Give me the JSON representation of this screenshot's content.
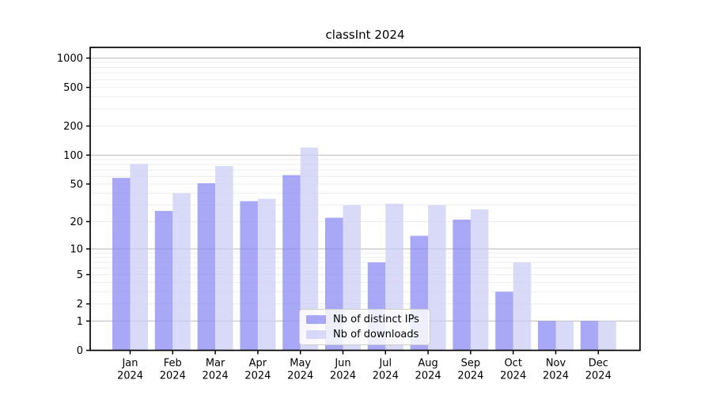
{
  "title": "classInt 2024",
  "legend": {
    "items": [
      {
        "label": "Nb of distinct IPs",
        "color": "#8b8bf3"
      },
      {
        "label": "Nb of downloads",
        "color": "#ccccf6"
      }
    ]
  },
  "colors": {
    "ips_bar": "#8b8bf3",
    "downloads_bar": "#ccccf6",
    "bar_opacity": 0.75,
    "grid_major": "#bdbdbd",
    "grid_minor": "#ededed",
    "axis": "#000000",
    "tick_text": "#000000",
    "legend_border": "#cccccc"
  },
  "axes": {
    "x_year": "2024",
    "x_months": [
      "Jan",
      "Feb",
      "Mar",
      "Apr",
      "May",
      "Jun",
      "Jul",
      "Aug",
      "Sep",
      "Oct",
      "Nov",
      "Dec"
    ],
    "y_ticks": [
      0,
      1,
      2,
      5,
      10,
      20,
      50,
      100,
      200,
      500,
      1000
    ]
  },
  "chart_data": {
    "type": "bar",
    "title": "classInt 2024",
    "categories": [
      "Jan 2024",
      "Feb 2024",
      "Mar 2024",
      "Apr 2024",
      "May 2024",
      "Jun 2024",
      "Jul 2024",
      "Aug 2024",
      "Sep 2024",
      "Oct 2024",
      "Nov 2024",
      "Dec 2024"
    ],
    "series": [
      {
        "name": "Nb of distinct IPs",
        "values": [
          58,
          26,
          51,
          33,
          62,
          22,
          7,
          14,
          21,
          3,
          1,
          1
        ]
      },
      {
        "name": "Nb of downloads",
        "values": [
          81,
          40,
          77,
          35,
          120,
          30,
          31,
          30,
          27,
          7,
          1,
          1
        ]
      }
    ],
    "xlabel": "",
    "ylabel": "",
    "yscale": "log10(1+y)",
    "ylim": [
      0,
      1284
    ],
    "yticks": [
      0,
      1,
      2,
      5,
      10,
      20,
      50,
      100,
      200,
      500,
      1000
    ],
    "grid": "on",
    "legend_position": "lower-center"
  }
}
